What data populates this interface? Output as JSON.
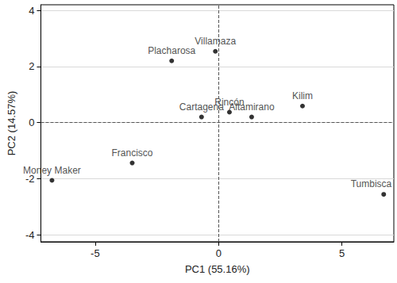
{
  "chart_data": {
    "type": "scatter",
    "x_label": "PC1 (55.16%)",
    "y_label": "PC2 (14.57%)",
    "labels": [
      "Villamaza",
      "Placharosa",
      "Cartagena",
      "Rincón",
      "Altamirano",
      "Kilim",
      "Francisco",
      "Money Maker",
      "Tumbisca"
    ],
    "x": [
      -0.13,
      -1.9,
      -0.69,
      0.44,
      1.34,
      3.4,
      -3.5,
      -6.75,
      6.69
    ],
    "values": [
      2.54,
      2.2,
      0.2,
      0.37,
      0.2,
      0.59,
      -1.44,
      -2.06,
      -2.56
    ],
    "color": "#000000",
    "marker": "circle",
    "xlim": [
      -7.2,
      7.1
    ],
    "xticks": [
      -5,
      0,
      5
    ],
    "ylim": [
      -4.25,
      4.2
    ],
    "yticks": [
      -4,
      -2,
      0,
      2,
      4
    ],
    "grid": "y"
  }
}
